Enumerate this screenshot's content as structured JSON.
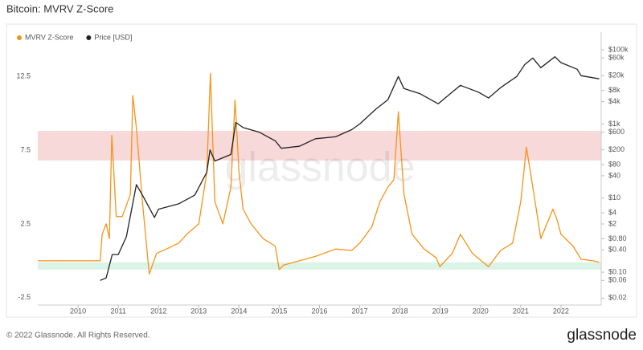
{
  "title": "Bitcoin: MVRV Z-Score",
  "footer": "© 2022 Glassnode. All Rights Reserved.",
  "logo": "glassnode",
  "watermark": "glassnode",
  "chart_data": {
    "type": "line",
    "xlim": [
      2009,
      2023
    ],
    "xticks": [
      2010,
      2011,
      2012,
      2013,
      2014,
      2015,
      2016,
      2017,
      2018,
      2019,
      2020,
      2021,
      2022
    ],
    "ylim": [
      -3,
      15.5
    ],
    "yticks": [
      -2.5,
      2.5,
      7.5,
      12.5
    ],
    "y2lim": [
      0.013,
      300000
    ],
    "y2_log": true,
    "y2ticks": [
      {
        "value": 0.02,
        "label": "$0.02"
      },
      {
        "value": 0.06,
        "label": "$0.06"
      },
      {
        "value": 0.1,
        "label": "$0.10"
      },
      {
        "value": 0.4,
        "label": "$0.40"
      },
      {
        "value": 0.8,
        "label": "$0.80"
      },
      {
        "value": 2,
        "label": "$2"
      },
      {
        "value": 4,
        "label": "$4"
      },
      {
        "value": 10,
        "label": "$10"
      },
      {
        "value": 40,
        "label": "$40"
      },
      {
        "value": 80,
        "label": "$80"
      },
      {
        "value": 200,
        "label": "$200"
      },
      {
        "value": 600,
        "label": "$600"
      },
      {
        "value": 1000,
        "label": "$1k"
      },
      {
        "value": 4000,
        "label": "$4k"
      },
      {
        "value": 8000,
        "label": "$8k"
      },
      {
        "value": 20000,
        "label": "$20k"
      },
      {
        "value": 60000,
        "label": "$60k"
      },
      {
        "value": 100000,
        "label": "$100k"
      }
    ],
    "bands": [
      {
        "from": 6.8,
        "to": 8.8,
        "color": "#f7d9d9"
      },
      {
        "from": -0.6,
        "to": -0.1,
        "color": "#dcf3e7"
      }
    ],
    "series": [
      {
        "name": "MVRV Z-Score",
        "color": "#f7931a",
        "axis": "y",
        "x": [
          2009,
          2010.55,
          2010.6,
          2010.7,
          2010.78,
          2010.84,
          2010.95,
          2011.1,
          2011.3,
          2011.36,
          2011.45,
          2011.6,
          2011.77,
          2011.95,
          2012.2,
          2012.5,
          2012.7,
          2013.0,
          2013.2,
          2013.29,
          2013.4,
          2013.6,
          2013.8,
          2013.9,
          2014.0,
          2014.1,
          2014.3,
          2014.6,
          2014.9,
          2015.0,
          2015.1,
          2015.5,
          2015.9,
          2016.4,
          2016.8,
          2017.0,
          2017.3,
          2017.5,
          2017.7,
          2017.85,
          2017.96,
          2018.1,
          2018.3,
          2018.6,
          2018.9,
          2018.99,
          2019.3,
          2019.5,
          2019.8,
          2020.2,
          2020.5,
          2020.8,
          2021.0,
          2021.14,
          2021.3,
          2021.5,
          2021.8,
          2021.9,
          2022.0,
          2022.3,
          2022.5,
          2022.8,
          2022.95
        ],
        "values": [
          0,
          0,
          1.8,
          2.5,
          1.5,
          8.5,
          3,
          3,
          4.5,
          11.2,
          9,
          4,
          -0.9,
          0.5,
          0.8,
          1.2,
          1.8,
          2.5,
          6,
          12.7,
          4,
          2.5,
          5,
          10.9,
          6,
          3.5,
          2.5,
          1.5,
          1,
          -0.6,
          -0.3,
          0,
          0.3,
          0.8,
          0.7,
          1.2,
          2.3,
          4,
          5,
          5.5,
          10.1,
          4.5,
          1.8,
          0.8,
          0.2,
          -0.4,
          0.5,
          1.8,
          0.5,
          -0.4,
          0.7,
          1.2,
          4,
          7.7,
          5,
          1.5,
          3.5,
          2.8,
          1.8,
          1,
          0.1,
          0,
          -0.1
        ]
      },
      {
        "name": "Price [USD]",
        "color": "#222222",
        "axis": "y2",
        "x": [
          2010.55,
          2010.7,
          2010.85,
          2011.0,
          2011.2,
          2011.45,
          2011.6,
          2011.9,
          2012.0,
          2012.5,
          2012.9,
          2013.2,
          2013.28,
          2013.4,
          2013.8,
          2013.92,
          2014.1,
          2014.5,
          2014.9,
          2015.05,
          2015.5,
          2015.9,
          2016.4,
          2016.8,
          2017.0,
          2017.4,
          2017.7,
          2017.96,
          2018.1,
          2018.5,
          2018.95,
          2019.5,
          2019.95,
          2020.2,
          2020.5,
          2020.9,
          2021.1,
          2021.3,
          2021.5,
          2021.85,
          2022.0,
          2022.4,
          2022.5,
          2022.95
        ],
        "values": [
          0.06,
          0.07,
          0.3,
          0.3,
          0.9,
          23,
          12,
          3,
          5,
          7,
          12,
          50,
          200,
          100,
          150,
          1100,
          800,
          600,
          350,
          220,
          250,
          400,
          450,
          700,
          1000,
          2500,
          4500,
          19000,
          9000,
          6500,
          3500,
          11000,
          7200,
          5000,
          9500,
          19000,
          40000,
          60000,
          33000,
          65000,
          45000,
          30000,
          20000,
          16500
        ]
      }
    ]
  }
}
